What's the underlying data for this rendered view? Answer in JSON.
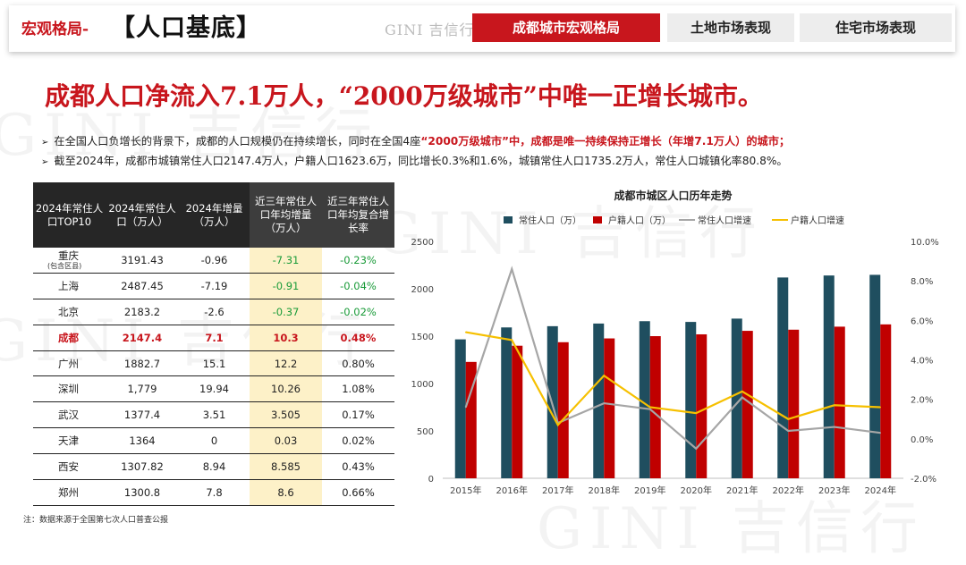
{
  "header": {
    "section": "宏观格局-",
    "title": "【人口基底】",
    "logo": "GINI 吉信行",
    "tabs": [
      {
        "label": "成都城市宏观格局",
        "active": true
      },
      {
        "label": "土地市场表现",
        "active": false
      },
      {
        "label": "住宅市场表现",
        "active": false
      }
    ]
  },
  "headline": "成都人口净流入7.1万人，“2000万级城市”中唯一正增长城市。",
  "bullets": [
    {
      "arrow": "➢",
      "pre": "在全国人口负增长的背景下，成都的人口规模仍在持续增长，同时在全国4座",
      "highlight": "“2000万级城市”中，成都是唯一持续保持正增长（年增7.1万人）的城市；"
    },
    {
      "arrow": "➢",
      "pre": "截至2024年，成都市城镇常住人口2147.4万人，户籍人口1623.6万，同比增长0.3%和1.6%，城镇常住人口1735.2万人，常住人口城镇化率80.8%。",
      "highlight": ""
    }
  ],
  "table": {
    "headers": [
      "2024年常住人口TOP10",
      "2024年常住人口（万人）",
      "2024年增量（万人）",
      "近三年常住人口年均增量（万人）",
      "近三年常住人口年均复合增长率"
    ],
    "rows": [
      {
        "sub": "重庆",
        "note": "(包含区县)",
        "pop": "3191.43",
        "inc": "-0.96",
        "avg": "-7.31",
        "cagr": "-0.23%",
        "neg": true
      },
      {
        "sub": "",
        "city": "上海",
        "pop": "2487.45",
        "inc": "-7.19",
        "avg": "-0.91",
        "cagr": "-0.04%",
        "neg": true
      },
      {
        "sub": "",
        "city": "北京",
        "pop": "2183.2",
        "inc": "-2.6",
        "avg": "-0.37",
        "cagr": "-0.02%",
        "neg": true
      },
      {
        "sub": "",
        "city": "成都",
        "pop": "2147.4",
        "inc": "7.1",
        "avg": "10.3",
        "cagr": "0.48%",
        "hl": true
      },
      {
        "sub": "",
        "city": "广州",
        "pop": "1882.7",
        "inc": "15.1",
        "avg": "12.2",
        "cagr": "0.80%"
      },
      {
        "sub": "",
        "city": "深圳",
        "pop": "1,779",
        "inc": "19.94",
        "avg": "10.26",
        "cagr": "1.08%"
      },
      {
        "sub": "",
        "city": "武汉",
        "pop": "1377.4",
        "inc": "3.51",
        "avg": "3.505",
        "cagr": "0.17%"
      },
      {
        "sub": "",
        "city": "天津",
        "pop": "1364",
        "inc": "0",
        "avg": "0.03",
        "cagr": "0.02%"
      },
      {
        "sub": "",
        "city": "西安",
        "pop": "1307.82",
        "inc": "8.94",
        "avg": "8.585",
        "cagr": "0.43%"
      },
      {
        "sub": "",
        "city": "郑州",
        "pop": "1300.8",
        "inc": "7.8",
        "avg": "8.6",
        "cagr": "0.66%"
      }
    ]
  },
  "note": "注：数据来源于全国第七次人口普查公报",
  "chart_data": {
    "type": "bar",
    "title": "成都市城区人口历年走势",
    "categories": [
      "2015年",
      "2016年",
      "2017年",
      "2018年",
      "2019年",
      "2020年",
      "2021年",
      "2022年",
      "2023年",
      "2024年"
    ],
    "series": [
      {
        "name": "常住人口（万）",
        "kind": "bar",
        "axis": "left",
        "color": "#1f4e5f",
        "values": [
          1466,
          1592,
          1605,
          1633,
          1658,
          1650,
          1685,
          2119,
          2140,
          2147
        ]
      },
      {
        "name": "户籍人口（万）",
        "kind": "bar",
        "axis": "left",
        "color": "#c00000",
        "values": [
          1228,
          1399,
          1436,
          1476,
          1500,
          1519,
          1556,
          1568,
          1600,
          1624
        ]
      },
      {
        "name": "常住人口增速",
        "kind": "line",
        "axis": "right",
        "color": "#a6a6a6",
        "values": [
          1.6,
          8.6,
          0.8,
          1.8,
          1.5,
          -0.5,
          2.1,
          0.4,
          0.6,
          0.3
        ]
      },
      {
        "name": "户籍人口增速",
        "kind": "line",
        "axis": "right",
        "color": "#f6c000",
        "values": [
          5.4,
          5.0,
          0.7,
          3.2,
          1.6,
          1.3,
          2.4,
          1.0,
          1.7,
          1.6
        ]
      }
    ],
    "ylim": [
      0,
      2500
    ],
    "yticks": [
      0,
      500,
      1000,
      1500,
      2000,
      2500
    ],
    "y2lim": [
      -2.0,
      10.0
    ],
    "y2ticks": [
      "-2.0%",
      "0.0%",
      "2.0%",
      "4.0%",
      "6.0%",
      "8.0%",
      "10.0%"
    ],
    "legend": "top"
  }
}
